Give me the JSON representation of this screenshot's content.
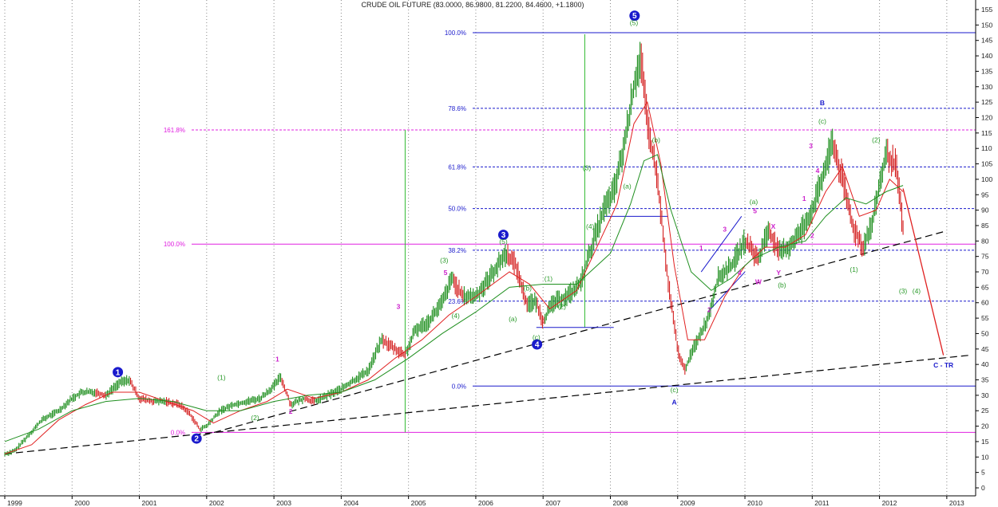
{
  "chart_data": {
    "type": "line",
    "title": "CRUDE OIL FUTURE (83.0000, 86.9800, 81.2200, 84.4600, +1.1800)",
    "xlabel": "",
    "ylabel": "",
    "x_ticks": [
      "1999",
      "2000",
      "2001",
      "2002",
      "2003",
      "2004",
      "2005",
      "2006",
      "2007",
      "2008",
      "2009",
      "2010",
      "2011",
      "2012",
      "2013"
    ],
    "y_ticks": [
      0,
      5,
      10,
      15,
      20,
      25,
      30,
      35,
      40,
      45,
      50,
      55,
      60,
      65,
      70,
      75,
      80,
      85,
      90,
      95,
      100,
      105,
      110,
      115,
      120,
      125,
      130,
      135,
      140,
      145,
      150,
      155
    ],
    "ylim": [
      0,
      155
    ],
    "xlim": [
      1999.0,
      2013.5
    ],
    "grid": "vertical",
    "series": [
      {
        "role": "price",
        "color": "#1f8f1f",
        "down_color": "#d42020",
        "x": [
          1999.0,
          1999.15,
          1999.35,
          1999.55,
          1999.8,
          2000.0,
          2000.15,
          2000.35,
          2000.5,
          2000.7,
          2000.85,
          2001.0,
          2001.2,
          2001.4,
          2001.6,
          2001.75,
          2001.9,
          2002.0,
          2002.2,
          2002.4,
          2002.6,
          2002.8,
          2003.0,
          2003.1,
          2003.25,
          2003.45,
          2003.6,
          2003.8,
          2004.0,
          2004.2,
          2004.4,
          2004.6,
          2004.8,
          2004.95,
          2005.1,
          2005.3,
          2005.5,
          2005.65,
          2005.8,
          2006.0,
          2006.2,
          2006.45,
          2006.6,
          2006.75,
          2006.9,
          2007.0,
          2007.15,
          2007.35,
          2007.55,
          2007.75,
          2007.9,
          2008.05,
          2008.2,
          2008.35,
          2008.45,
          2008.55,
          2008.7,
          2008.85,
          2009.0,
          2009.1,
          2009.25,
          2009.45,
          2009.6,
          2009.8,
          2010.0,
          2010.2,
          2010.35,
          2010.5,
          2010.65,
          2010.8,
          2011.0,
          2011.15,
          2011.3,
          2011.45,
          2011.6,
          2011.75,
          2011.9,
          2012.0,
          2012.1,
          2012.25,
          2012.35
        ],
        "y": [
          11,
          12,
          17,
          22,
          25,
          29,
          31,
          31,
          30,
          34,
          35,
          29,
          28,
          28,
          27,
          24,
          19,
          20,
          25,
          27,
          28,
          29,
          33,
          36,
          27,
          29,
          28,
          30,
          32,
          35,
          38,
          48,
          45,
          43,
          51,
          54,
          60,
          68,
          62,
          62,
          68,
          76,
          72,
          60,
          60,
          54,
          60,
          62,
          66,
          80,
          90,
          96,
          110,
          130,
          140,
          118,
          100,
          68,
          45,
          38,
          46,
          55,
          68,
          72,
          80,
          74,
          84,
          76,
          78,
          82,
          90,
          100,
          112,
          100,
          85,
          78,
          86,
          98,
          108,
          104,
          84
        ]
      },
      {
        "role": "short-moving-average",
        "color": "#e02020",
        "x": [
          1999.0,
          1999.4,
          1999.8,
          2000.2,
          2000.6,
          2001.0,
          2001.4,
          2001.8,
          2002.1,
          2002.5,
          2002.9,
          2003.2,
          2003.6,
          2004.0,
          2004.4,
          2004.8,
          2005.2,
          2005.6,
          2006.0,
          2006.5,
          2006.8,
          2007.1,
          2007.5,
          2007.8,
          2008.1,
          2008.35,
          2008.55,
          2008.75,
          2008.95,
          2009.15,
          2009.4,
          2009.7,
          2010.0,
          2010.3,
          2010.6,
          2010.9,
          2011.2,
          2011.45,
          2011.7,
          2011.95,
          2012.15,
          2012.35
        ],
        "y": [
          11,
          14,
          22,
          27,
          31,
          31,
          28,
          25,
          21,
          25,
          28,
          32,
          29,
          31,
          35,
          42,
          48,
          56,
          62,
          70,
          66,
          58,
          64,
          78,
          92,
          118,
          125,
          105,
          72,
          48,
          48,
          62,
          72,
          78,
          78,
          82,
          96,
          104,
          88,
          90,
          100,
          96
        ]
      },
      {
        "role": "long-moving-average",
        "color": "#1f8f1f",
        "x": [
          1999.0,
          1999.5,
          2000.0,
          2000.5,
          2001.0,
          2001.5,
          2002.0,
          2002.5,
          2003.0,
          2003.5,
          2004.0,
          2004.5,
          2005.0,
          2005.5,
          2006.0,
          2006.5,
          2007.0,
          2007.5,
          2008.0,
          2008.3,
          2008.5,
          2008.7,
          2008.9,
          2009.2,
          2009.5,
          2009.8,
          2010.1,
          2010.5,
          2010.9,
          2011.2,
          2011.5,
          2011.8,
          2012.1,
          2012.35
        ],
        "y": [
          15,
          19,
          25,
          28,
          29,
          28,
          25,
          25,
          28,
          30,
          31,
          35,
          42,
          50,
          57,
          65,
          66,
          66,
          76,
          92,
          106,
          108,
          90,
          70,
          64,
          68,
          74,
          78,
          80,
          88,
          94,
          92,
          96,
          98
        ]
      }
    ],
    "annotations": {
      "fib_left": [
        {
          "label": "161.8%",
          "value": 116
        },
        {
          "label": "100.0%",
          "value": 79
        },
        {
          "label": "0.0%",
          "value": 18
        }
      ],
      "fib_right": [
        {
          "label": "100.0%",
          "value": 147.5
        },
        {
          "label": "78.6%",
          "value": 123
        },
        {
          "label": "61.8%",
          "value": 104
        },
        {
          "label": "50.0%",
          "value": 90.5
        },
        {
          "label": "38.2%",
          "value": 77
        },
        {
          "label": "23.6%",
          "value": 60.5
        },
        {
          "label": "0.0%",
          "value": 33
        }
      ],
      "major_waves": [
        {
          "label": "1",
          "x": 2000.68,
          "y": 37.5
        },
        {
          "label": "2",
          "x": 2001.85,
          "y": 16
        },
        {
          "label": "3",
          "x": 2006.41,
          "y": 82
        },
        {
          "label": "4",
          "x": 2006.91,
          "y": 46.5
        },
        {
          "label": "5",
          "x": 2008.36,
          "y": 153
        }
      ],
      "corrective_labels": [
        {
          "label": "A",
          "x": 2008.95,
          "y": 27
        },
        {
          "label": "B",
          "x": 2011.15,
          "y": 124
        },
        {
          "label": "C - TR",
          "x": 2012.95,
          "y": 39
        }
      ],
      "minor_green": [
        {
          "label": "(5)",
          "x": 2008.35,
          "y": 150
        },
        {
          "label": "(1)",
          "x": 2002.22,
          "y": 35
        },
        {
          "label": "(2)",
          "x": 2002.72,
          "y": 22
        },
        {
          "label": "(3)",
          "x": 2005.53,
          "y": 73
        },
        {
          "label": "(4)",
          "x": 2005.7,
          "y": 55
        },
        {
          "label": "(5)",
          "x": 2006.41,
          "y": 79
        },
        {
          "label": "(a)",
          "x": 2006.55,
          "y": 54
        },
        {
          "label": "(b)",
          "x": 2006.77,
          "y": 64
        },
        {
          "label": "(c)",
          "x": 2006.9,
          "y": 48
        },
        {
          "label": "(1)",
          "x": 2007.08,
          "y": 67
        },
        {
          "label": "(2)",
          "x": 2007.28,
          "y": 58
        },
        {
          "label": "(3)",
          "x": 2007.65,
          "y": 103
        },
        {
          "label": "(4)",
          "x": 2007.7,
          "y": 84
        },
        {
          "label": "(a)",
          "x": 2008.25,
          "y": 97
        },
        {
          "label": "(b)",
          "x": 2008.68,
          "y": 112
        },
        {
          "label": "(c)",
          "x": 2008.95,
          "y": 31
        },
        {
          "label": "(a)",
          "x": 2010.13,
          "y": 92
        },
        {
          "label": "(b)",
          "x": 2010.55,
          "y": 65
        },
        {
          "label": "(c)",
          "x": 2011.15,
          "y": 118
        },
        {
          "label": "(1)",
          "x": 2011.62,
          "y": 70
        },
        {
          "label": "(2)",
          "x": 2011.95,
          "y": 112
        },
        {
          "label": "(3)",
          "x": 2012.35,
          "y": 63
        },
        {
          "label": "(4)",
          "x": 2012.55,
          "y": 63
        }
      ],
      "minor_magenta": [
        {
          "label": "3",
          "x": 2004.85,
          "y": 58
        },
        {
          "label": "1",
          "x": 2003.05,
          "y": 41
        },
        {
          "label": "2",
          "x": 2003.25,
          "y": 24
        },
        {
          "label": "5",
          "x": 2005.55,
          "y": 69
        },
        {
          "label": "1",
          "x": 2009.35,
          "y": 77
        },
        {
          "label": "2",
          "x": 2009.47,
          "y": 57
        },
        {
          "label": "3",
          "x": 2009.7,
          "y": 83
        },
        {
          "label": "4",
          "x": 2009.92,
          "y": 69
        },
        {
          "label": "5",
          "x": 2010.15,
          "y": 89
        },
        {
          "label": "W",
          "x": 2010.2,
          "y": 66
        },
        {
          "label": "X",
          "x": 2010.42,
          "y": 84
        },
        {
          "label": "Y",
          "x": 2010.5,
          "y": 69
        },
        {
          "label": "1",
          "x": 2010.88,
          "y": 93
        },
        {
          "label": "2",
          "x": 2011.0,
          "y": 81
        },
        {
          "label": "3",
          "x": 2010.98,
          "y": 110
        },
        {
          "label": "4",
          "x": 2011.08,
          "y": 102
        }
      ]
    }
  }
}
